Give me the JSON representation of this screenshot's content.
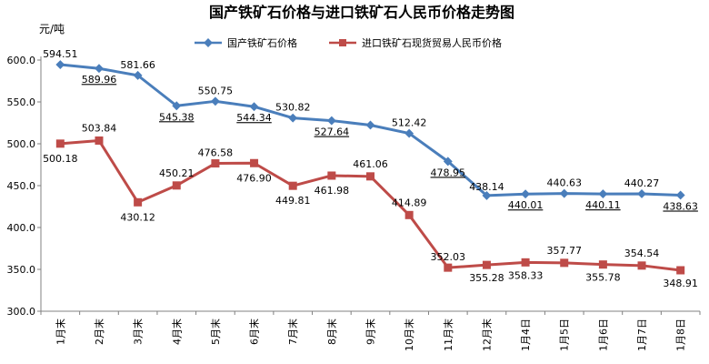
{
  "chart_data": {
    "type": "line",
    "title": "国产铁矿石价格与进口铁矿石人民币价格走势图",
    "ylabel": "元/吨",
    "ylim": [
      300,
      600
    ],
    "yticks": [
      "300.0",
      "350.0",
      "400.0",
      "450.0",
      "500.0",
      "550.0",
      "600.0"
    ],
    "categories": [
      "1月末",
      "2月末",
      "3月末",
      "4月末",
      "5月末",
      "6月末",
      "7月末",
      "8月末",
      "9月末",
      "10月末",
      "11月末",
      "12月末",
      "1月4日",
      "1月5日",
      "1月6日",
      "1月7日",
      "1月8日"
    ],
    "legend_position": "top",
    "grid": false,
    "series": [
      {
        "name": "国产铁矿石价格",
        "color": "#4a7ebb",
        "marker": "diamond",
        "values": [
          594.51,
          589.96,
          581.66,
          545.38,
          550.75,
          544.34,
          530.82,
          527.64,
          522.3,
          512.42,
          478.95,
          438.14,
          440.01,
          440.63,
          440.11,
          440.27,
          438.63
        ],
        "labels": [
          "594.51",
          "589.96",
          "581.66",
          "545.38",
          "550.75",
          "544.34",
          "530.82",
          "527.64",
          "",
          "512.42",
          "478.95",
          "438.14",
          "440.01",
          "440.63",
          "440.11",
          "440.27",
          "438.63"
        ]
      },
      {
        "name": "进口铁矿石现货贸易人民币价格",
        "color": "#be4b48",
        "marker": "square",
        "values": [
          500.18,
          503.84,
          430.12,
          450.21,
          476.58,
          476.9,
          449.81,
          461.98,
          461.06,
          414.89,
          352.03,
          355.28,
          358.33,
          357.77,
          355.78,
          354.54,
          348.91
        ],
        "labels": [
          "500.18",
          "503.84",
          "430.12",
          "450.21",
          "476.58",
          "476.90",
          "449.81",
          "461.98",
          "461.06",
          "414.89",
          "352.03",
          "355.28",
          "358.33",
          "357.77",
          "355.78",
          "354.54",
          "348.91"
        ]
      }
    ]
  }
}
